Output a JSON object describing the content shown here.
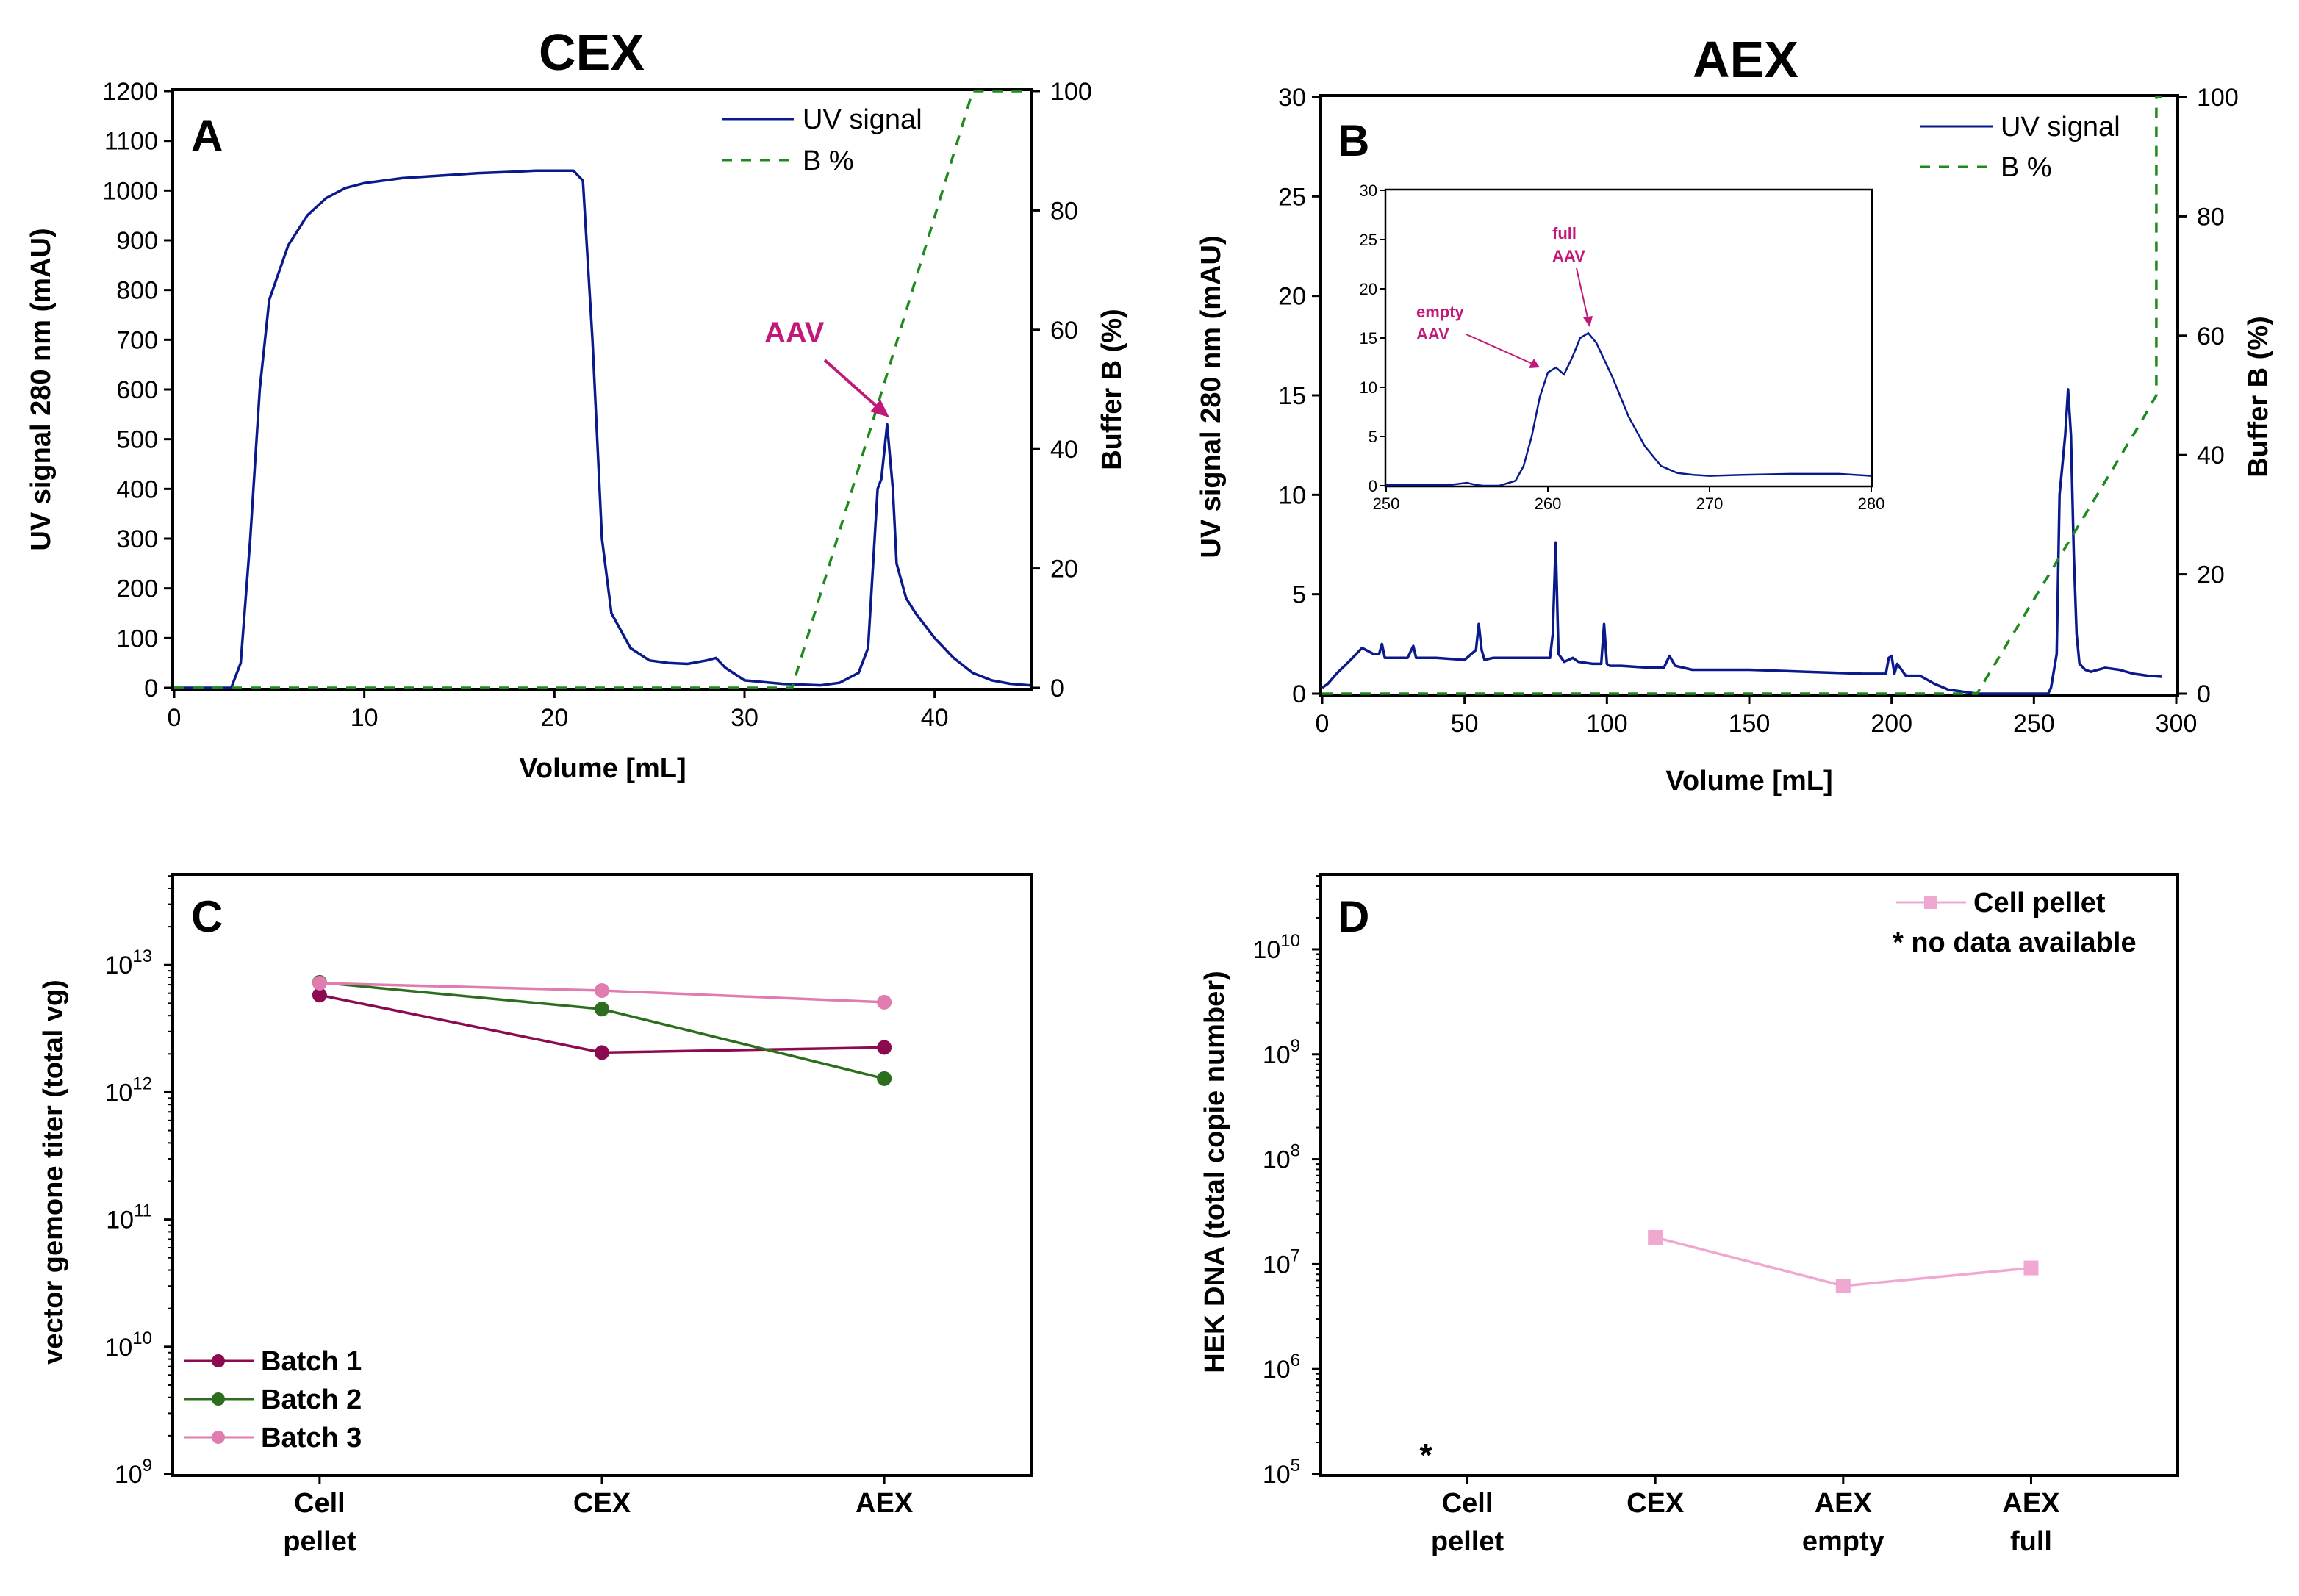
{
  "colors": {
    "uv": "#0a1a8c",
    "bpct": "#1e8a1e",
    "accent": "#c2187a",
    "batch1": "#8b0a50",
    "batch2": "#2d6e1e",
    "batch3": "#e07cb0",
    "hek": "#f0a8d0"
  },
  "chart_data": [
    {
      "id": "A",
      "type": "line",
      "title": "CEX",
      "panel_label": "A",
      "xlabel": "Volume [mL]",
      "ylabel": "UV signal 280 nm (mAU)",
      "y2label": "Buffer B (%)",
      "xlim": [
        0,
        45
      ],
      "ylim": [
        0,
        1200
      ],
      "y2lim": [
        0,
        100
      ],
      "xticks": [
        "0",
        "10",
        "20",
        "30",
        "40"
      ],
      "yticks": [
        "0",
        "100",
        "200",
        "300",
        "400",
        "500",
        "600",
        "700",
        "800",
        "900",
        "1000",
        "1100",
        "1200"
      ],
      "y2ticks": [
        "0",
        "20",
        "40",
        "60",
        "80",
        "100"
      ],
      "legend": [
        "UV signal",
        "B %"
      ],
      "annotation": "AAV",
      "series": [
        {
          "name": "UV signal",
          "axis": "left",
          "x": [
            0,
            3,
            3.5,
            4,
            4.5,
            5,
            6,
            7,
            8,
            9,
            10,
            12,
            14,
            16,
            18,
            19,
            20,
            21,
            21.5,
            22,
            22.5,
            23,
            24,
            25,
            26,
            27,
            28,
            28.5,
            29,
            30,
            32,
            34,
            35,
            36,
            36.5,
            37,
            37.2,
            37.5,
            37.8,
            38,
            38.5,
            39,
            40,
            41,
            42,
            43,
            44,
            45
          ],
          "y": [
            0,
            0,
            50,
            300,
            600,
            780,
            890,
            950,
            985,
            1005,
            1015,
            1025,
            1030,
            1035,
            1038,
            1040,
            1040,
            1040,
            1020,
            700,
            300,
            150,
            80,
            55,
            50,
            48,
            55,
            60,
            40,
            15,
            8,
            5,
            10,
            30,
            80,
            400,
            420,
            530,
            400,
            250,
            180,
            150,
            100,
            60,
            30,
            15,
            8,
            5
          ]
        },
        {
          "name": "B %",
          "axis": "right",
          "x": [
            0,
            32.5,
            42,
            45
          ],
          "y": [
            0,
            0,
            100,
            100
          ]
        }
      ]
    },
    {
      "id": "B",
      "type": "line",
      "title": "AEX",
      "panel_label": "B",
      "xlabel": "Volume [mL]",
      "ylabel": "UV signal 280 nm (mAU)",
      "y2label": "Buffer B (%)",
      "xlim": [
        0,
        300
      ],
      "ylim": [
        0,
        30
      ],
      "y2lim": [
        0,
        100
      ],
      "xticks": [
        "0",
        "50",
        "100",
        "150",
        "200",
        "250",
        "300"
      ],
      "yticks": [
        "0",
        "5",
        "10",
        "15",
        "20",
        "25",
        "30"
      ],
      "y2ticks": [
        "0",
        "20",
        "40",
        "60",
        "80",
        "100"
      ],
      "legend": [
        "UV signal",
        "B %"
      ],
      "series": [
        {
          "name": "UV signal",
          "axis": "left",
          "x": [
            0,
            2,
            5,
            10,
            14,
            18,
            20,
            21,
            22,
            30,
            32,
            33,
            40,
            50,
            54,
            55,
            56,
            57,
            60,
            70,
            80,
            81,
            82,
            83,
            85,
            88,
            90,
            95,
            98,
            99,
            100,
            101,
            105,
            115,
            120,
            122,
            124,
            130,
            150,
            170,
            190,
            198,
            199,
            200,
            201,
            202,
            205,
            210,
            215,
            220,
            225,
            230,
            240,
            250,
            255,
            256,
            258,
            259,
            260,
            261,
            262,
            263,
            264,
            265,
            266,
            268,
            270,
            275,
            280,
            285,
            290,
            295
          ],
          "y": [
            0.3,
            0.5,
            1,
            1.7,
            2.3,
            2,
            2,
            2.5,
            1.8,
            1.8,
            2.4,
            1.8,
            1.8,
            1.7,
            2.2,
            3.5,
            2.2,
            1.7,
            1.8,
            1.8,
            1.8,
            3,
            7.6,
            2,
            1.6,
            1.8,
            1.6,
            1.5,
            1.5,
            3.5,
            1.5,
            1.4,
            1.4,
            1.3,
            1.3,
            1.9,
            1.4,
            1.2,
            1.2,
            1.1,
            1,
            1,
            1.8,
            1.9,
            1,
            1.5,
            0.9,
            0.9,
            0.5,
            0.2,
            0.1,
            0,
            0,
            0,
            0,
            0.3,
            2,
            10,
            11.5,
            13,
            15.3,
            13,
            7,
            3,
            1.5,
            1.2,
            1.1,
            1.3,
            1.2,
            1,
            0.9,
            0.85
          ]
        },
        {
          "name": "B %",
          "axis": "right",
          "x": [
            0,
            230,
            287,
            293,
            293,
            295
          ],
          "y": [
            0,
            0,
            45,
            50,
            100,
            100
          ]
        }
      ],
      "inset": {
        "xlim": [
          250,
          280
        ],
        "ylim": [
          0,
          30
        ],
        "xticks": [
          "250",
          "260",
          "270",
          "280"
        ],
        "yticks": [
          "0",
          "5",
          "10",
          "15",
          "20",
          "25",
          "30"
        ],
        "annotations": [
          "empty",
          "AAV",
          "full",
          "AAV"
        ],
        "x": [
          250,
          254,
          255,
          255.5,
          256,
          257,
          258,
          258.5,
          259,
          259.5,
          260,
          260.5,
          261,
          261.5,
          262,
          262.5,
          263,
          264,
          265,
          266,
          267,
          268,
          269,
          270,
          272,
          275,
          278,
          280
        ],
        "y": [
          0.1,
          0.1,
          0.3,
          0.1,
          0,
          0,
          0.5,
          2,
          5,
          9,
          11.5,
          12,
          11.3,
          13,
          15,
          15.5,
          14.5,
          11,
          7,
          4,
          2,
          1.3,
          1.1,
          1,
          1.1,
          1.2,
          1.2,
          1
        ]
      }
    },
    {
      "id": "C",
      "type": "line",
      "panel_label": "C",
      "ylabel": "vector gemone titer (total vg)",
      "yscale": "log",
      "ylim_exp": [
        9,
        13.7
      ],
      "yticks": [
        {
          "base": "10",
          "exp": "9"
        },
        {
          "base": "10",
          "exp": "10"
        },
        {
          "base": "10",
          "exp": "11"
        },
        {
          "base": "10",
          "exp": "12"
        },
        {
          "base": "10",
          "exp": "13"
        }
      ],
      "categories": [
        [
          "Cell",
          "pellet"
        ],
        [
          "CEX"
        ],
        [
          "AEX"
        ]
      ],
      "series": [
        {
          "name": "Batch 1",
          "values": [
            5800000000000.0,
            2050000000000.0,
            2250000000000.0
          ]
        },
        {
          "name": "Batch 2",
          "values": [
            7300000000000.0,
            4500000000000.0,
            1280000000000.0
          ]
        },
        {
          "name": "Batch 3",
          "values": [
            7200000000000.0,
            6300000000000.0,
            5100000000000.0
          ]
        }
      ]
    },
    {
      "id": "D",
      "type": "line",
      "panel_label": "D",
      "ylabel": "HEK DNA (total copie number)",
      "yscale": "log",
      "ylim_exp": [
        5,
        10.7
      ],
      "yticks": [
        {
          "base": "10",
          "exp": "5"
        },
        {
          "base": "10",
          "exp": "6"
        },
        {
          "base": "10",
          "exp": "7"
        },
        {
          "base": "10",
          "exp": "8"
        },
        {
          "base": "10",
          "exp": "9"
        },
        {
          "base": "10",
          "exp": "10"
        }
      ],
      "categories": [
        [
          "Cell",
          "pellet"
        ],
        [
          "CEX"
        ],
        [
          "AEX",
          "empty"
        ],
        [
          "AEX",
          "full"
        ]
      ],
      "series": [
        {
          "name": "Cell pellet",
          "values": [
            null,
            18000000.0,
            6200000.0,
            9200000.0
          ]
        }
      ],
      "no_data_marker": "*",
      "legend_note": "* no data available"
    }
  ]
}
